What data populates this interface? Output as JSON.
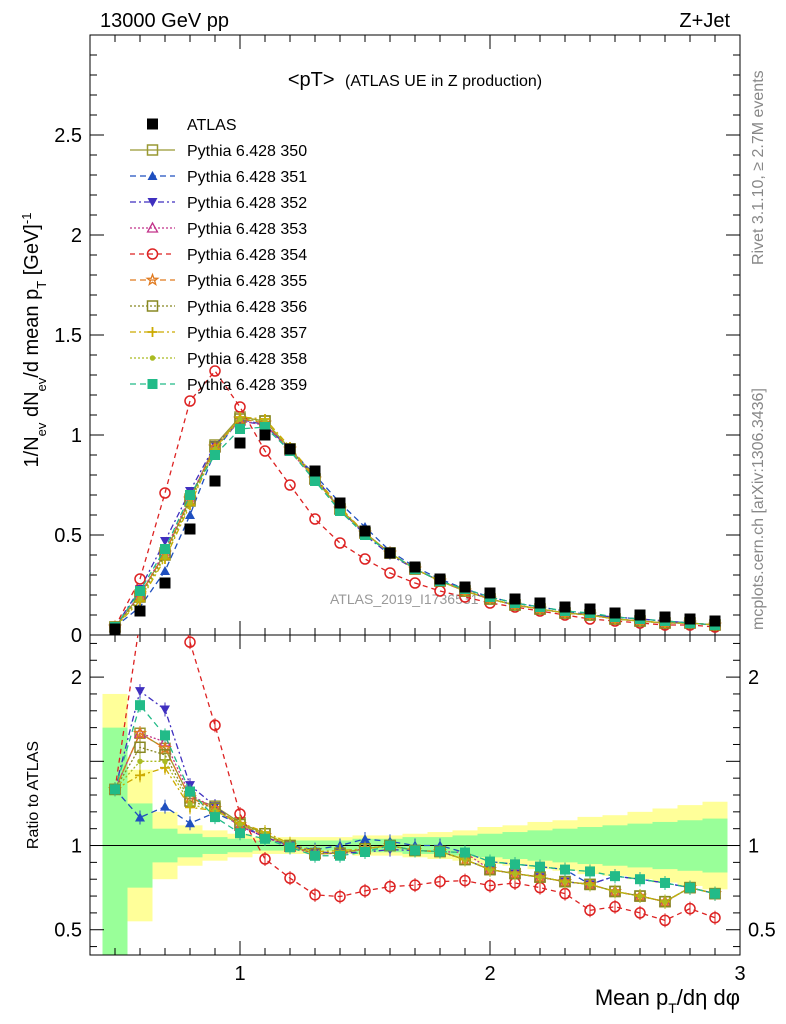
{
  "header": {
    "left": "13000 GeV pp",
    "right": "Z+Jet"
  },
  "side_labels": {
    "rivet": "Rivet 3.1.10, ≥ 2.7M events",
    "mcplots": "mcplots.cern.ch [arXiv:1306.3436]"
  },
  "watermark": "ATLAS_2019_I1736531",
  "chart_data": {
    "type": "line",
    "title": "<pT> (ATLAS UE in Z production)",
    "title_main": "<pT>",
    "title_sub": "(ATLAS UE in Z production)",
    "xlabel": "Mean p_T/dη dφ",
    "ylabel": "1/N_ev dN_ev/d mean p_T [GeV]^-1",
    "ratio_ylabel": "Ratio to ATLAS",
    "xlim": [
      0.4,
      3.0
    ],
    "ylim": [
      0,
      3.0
    ],
    "ratio_ylim": [
      0.35,
      2.25
    ],
    "x_ticks": [
      "1",
      "2",
      "3"
    ],
    "y_ticks": [
      "0",
      "0.5",
      "1",
      "1.5",
      "2",
      "2.5"
    ],
    "ratio_ticks": [
      "0.5",
      "1",
      "2"
    ],
    "legend_placement": "top-left",
    "x": [
      0.5,
      0.6,
      0.7,
      0.8,
      0.9,
      1.0,
      1.1,
      1.2,
      1.3,
      1.4,
      1.5,
      1.6,
      1.7,
      1.8,
      1.9,
      2.0,
      2.1,
      2.2,
      2.3,
      2.4,
      2.5,
      2.6,
      2.7,
      2.8,
      2.9
    ],
    "data": {
      "name": "ATLAS",
      "values": [
        0.03,
        0.12,
        0.26,
        0.53,
        0.77,
        0.96,
        1.0,
        0.93,
        0.82,
        0.66,
        0.52,
        0.41,
        0.34,
        0.28,
        0.24,
        0.21,
        0.18,
        0.16,
        0.14,
        0.13,
        0.11,
        0.1,
        0.09,
        0.08,
        0.07
      ]
    },
    "series": [
      {
        "name": "Pythia 6.428 350",
        "color": "#999933",
        "marker": "square-open",
        "dash": "none",
        "values": [
          0.04,
          0.2,
          0.41,
          0.68,
          0.95,
          1.09,
          1.07,
          0.93,
          0.78,
          0.63,
          0.51,
          0.41,
          0.33,
          0.27,
          0.22,
          0.18,
          0.15,
          0.13,
          0.11,
          0.1,
          0.08,
          0.07,
          0.06,
          0.06,
          0.05
        ]
      },
      {
        "name": "Pythia 6.428 351",
        "color": "#1f4fbf",
        "marker": "triangle-up",
        "dash": "6,4",
        "values": [
          0.04,
          0.14,
          0.32,
          0.6,
          0.92,
          1.08,
          1.05,
          0.93,
          0.8,
          0.66,
          0.54,
          0.42,
          0.34,
          0.28,
          0.23,
          0.19,
          0.16,
          0.14,
          0.12,
          0.1,
          0.09,
          0.08,
          0.07,
          0.06,
          0.05
        ]
      },
      {
        "name": "Pythia 6.428 352",
        "color": "#3f2fbf",
        "marker": "triangle-down",
        "dash": "6,3,2,3",
        "values": [
          0.04,
          0.23,
          0.47,
          0.72,
          0.95,
          1.07,
          1.05,
          0.93,
          0.79,
          0.63,
          0.5,
          0.4,
          0.33,
          0.27,
          0.22,
          0.18,
          0.15,
          0.13,
          0.11,
          0.1,
          0.09,
          0.08,
          0.07,
          0.06,
          0.05
        ]
      },
      {
        "name": "Pythia 6.428 353",
        "color": "#c2338a",
        "marker": "triangle-open",
        "dash": "2,2",
        "values": [
          0.04,
          0.2,
          0.42,
          0.69,
          0.94,
          1.07,
          1.05,
          0.92,
          0.78,
          0.63,
          0.51,
          0.41,
          0.33,
          0.27,
          0.23,
          0.18,
          0.15,
          0.13,
          0.11,
          0.1,
          0.08,
          0.07,
          0.06,
          0.06,
          0.05
        ]
      },
      {
        "name": "Pythia 6.428 354",
        "color": "#dd2222",
        "marker": "circle-open",
        "dash": "5,4",
        "values": [
          0.04,
          0.28,
          0.71,
          1.17,
          1.32,
          1.14,
          0.92,
          0.75,
          0.58,
          0.46,
          0.38,
          0.31,
          0.26,
          0.22,
          0.19,
          0.16,
          0.14,
          0.12,
          0.1,
          0.08,
          0.07,
          0.06,
          0.05,
          0.05,
          0.04
        ]
      },
      {
        "name": "Pythia 6.428 355",
        "color": "#e07a1f",
        "marker": "star",
        "dash": "6,4",
        "values": [
          0.04,
          0.2,
          0.41,
          0.68,
          0.94,
          1.08,
          1.06,
          0.93,
          0.78,
          0.63,
          0.51,
          0.41,
          0.33,
          0.27,
          0.22,
          0.18,
          0.15,
          0.13,
          0.11,
          0.1,
          0.08,
          0.07,
          0.06,
          0.06,
          0.05
        ]
      },
      {
        "name": "Pythia 6.428 356",
        "color": "#888822",
        "marker": "square-open",
        "dash": "2,2",
        "values": [
          0.04,
          0.19,
          0.4,
          0.67,
          0.94,
          1.08,
          1.07,
          0.93,
          0.78,
          0.63,
          0.51,
          0.41,
          0.33,
          0.27,
          0.22,
          0.18,
          0.15,
          0.13,
          0.11,
          0.1,
          0.08,
          0.07,
          0.06,
          0.06,
          0.05
        ]
      },
      {
        "name": "Pythia 6.428 357",
        "color": "#ccaa00",
        "marker": "cross",
        "dash": "6,3,2,3",
        "values": [
          0.04,
          0.17,
          0.38,
          0.65,
          0.93,
          1.09,
          1.08,
          0.94,
          0.79,
          0.64,
          0.51,
          0.41,
          0.33,
          0.27,
          0.22,
          0.18,
          0.15,
          0.13,
          0.11,
          0.1,
          0.08,
          0.07,
          0.06,
          0.06,
          0.05
        ]
      },
      {
        "name": "Pythia 6.428 358",
        "color": "#aabb22",
        "marker": "dot",
        "dash": "2,2",
        "values": [
          0.04,
          0.18,
          0.39,
          0.66,
          0.93,
          1.08,
          1.07,
          0.93,
          0.78,
          0.63,
          0.51,
          0.41,
          0.33,
          0.27,
          0.22,
          0.18,
          0.15,
          0.13,
          0.11,
          0.1,
          0.08,
          0.07,
          0.06,
          0.06,
          0.05
        ]
      },
      {
        "name": "Pythia 6.428 359",
        "color": "#22bb88",
        "marker": "square",
        "dash": "6,4",
        "values": [
          0.04,
          0.22,
          0.43,
          0.7,
          0.9,
          1.03,
          1.04,
          0.92,
          0.77,
          0.62,
          0.5,
          0.41,
          0.33,
          0.27,
          0.23,
          0.19,
          0.16,
          0.14,
          0.12,
          0.11,
          0.09,
          0.08,
          0.07,
          0.06,
          0.05
        ]
      }
    ],
    "uncertainty_bands": {
      "x_edges": [
        0.45,
        0.55,
        0.65,
        0.75,
        0.85,
        0.95,
        1.05,
        1.15,
        1.25,
        1.35,
        1.45,
        1.55,
        1.65,
        1.75,
        1.85,
        1.95,
        2.05,
        2.15,
        2.25,
        2.35,
        2.45,
        2.55,
        2.65,
        2.75,
        2.85,
        2.95
      ],
      "green_half_width": [
        0.7,
        0.25,
        0.1,
        0.07,
        0.05,
        0.04,
        0.03,
        0.03,
        0.03,
        0.03,
        0.04,
        0.04,
        0.05,
        0.05,
        0.06,
        0.07,
        0.08,
        0.09,
        0.1,
        0.11,
        0.12,
        0.13,
        0.14,
        0.15,
        0.16
      ],
      "yellow_half_width": [
        0.9,
        0.45,
        0.2,
        0.12,
        0.09,
        0.07,
        0.05,
        0.05,
        0.05,
        0.05,
        0.06,
        0.06,
        0.07,
        0.08,
        0.09,
        0.11,
        0.12,
        0.14,
        0.15,
        0.17,
        0.18,
        0.2,
        0.22,
        0.24,
        0.26
      ]
    }
  }
}
